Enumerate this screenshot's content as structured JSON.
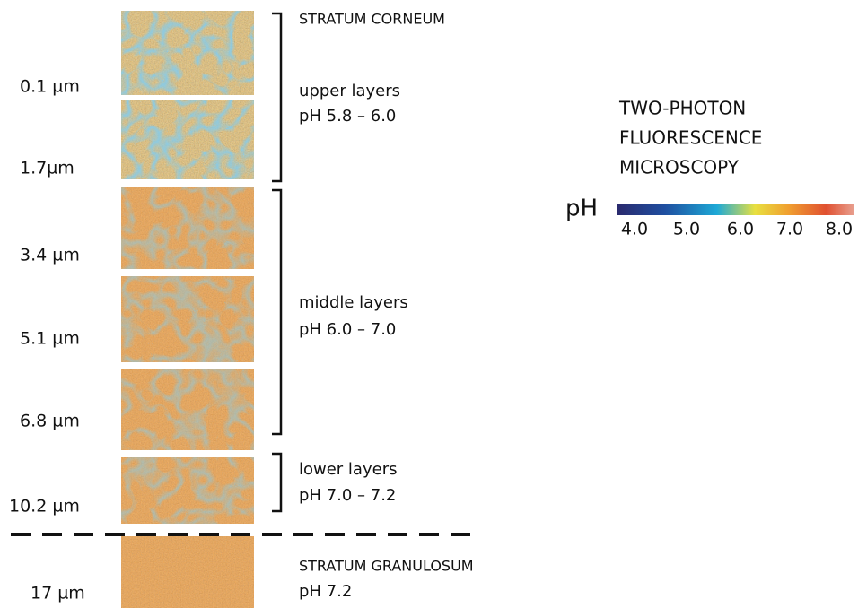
{
  "depths": [
    "0.1 µm",
    "1.7µm",
    "3.4 µm",
    "5.1 µm",
    "6.8 µm",
    "10.2 µm",
    "17 µm"
  ],
  "layers": [
    {
      "name": "STRATUM CORNEUM"
    },
    {
      "name": "upper layers",
      "ph": "pH 5.8 – 6.0"
    },
    {
      "name": "middle layers",
      "ph": "pH 6.0 – 7.0"
    },
    {
      "name": "lower layers",
      "ph": "pH 7.0 – 7.2"
    },
    {
      "name": "STRATUM GRANULOSUM",
      "ph": "pH 7.2"
    }
  ],
  "method": {
    "lines": [
      "TWO-PHOTON",
      "FLUORESCENCE",
      "MICROSCOPY"
    ]
  },
  "colorbar": {
    "label": "pH",
    "ticks": [
      "4.0",
      "5.0",
      "6.0",
      "7.0",
      "8.0"
    ]
  }
}
